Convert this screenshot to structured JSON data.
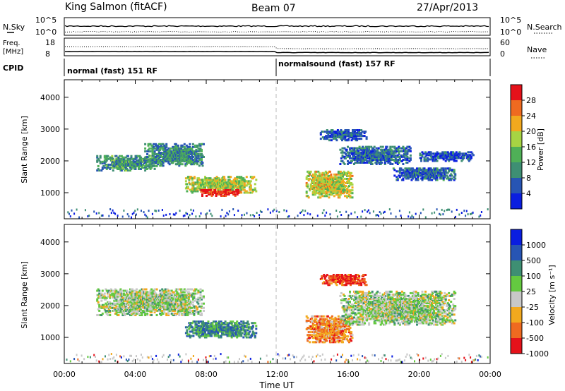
{
  "header": {
    "station": "King Salmon (fitACF)",
    "beam": "Beam 07",
    "date": "27/Apr/2013"
  },
  "strips": {
    "nsky_label": "N.Sky",
    "nsky_ticks": [
      "10^5",
      "10^0"
    ],
    "nsearch_label": "N.Search",
    "nsearch_ticks": [
      "10^5",
      "10^0"
    ],
    "freq_label": "Freq.",
    "freq_unit": "[MHz]",
    "freq_ticks": [
      "18",
      "8"
    ],
    "nave_label": "Nave",
    "nave_ticks": [
      "60",
      "0"
    ],
    "cpid_label": "CPID",
    "cpid_modes": [
      {
        "label": "normal (fast) 151 RF",
        "start_h": 0
      },
      {
        "label": "normalsound (fast) 157 RF",
        "start_h": 12
      }
    ]
  },
  "chart_data": [
    {
      "type": "heatmap",
      "title": "Power",
      "xlabel": "Time UT",
      "ylabel": "Slant Range [km]",
      "xlim": [
        0,
        24
      ],
      "ylim": [
        180,
        4550
      ],
      "xticks": [
        "00:00",
        "04:00",
        "08:00",
        "12:00",
        "16:00",
        "20:00",
        "00:00"
      ],
      "yticks": [
        1000,
        2000,
        3000,
        4000
      ],
      "colorbar": {
        "label": "Power [dB]",
        "ticks": [
          "4",
          "8",
          "12",
          "16",
          "20",
          "24",
          "28"
        ],
        "colors": [
          "#0a1ee0",
          "#2755b4",
          "#3e8f73",
          "#4fb057",
          "#a7d443",
          "#f2a91e",
          "#ef6a20",
          "#e5121a"
        ]
      },
      "regions": [
        {
          "t": [
            1.8,
            5.2
          ],
          "r": [
            1700,
            2150
          ],
          "level": 0.35
        },
        {
          "t": [
            4.5,
            7.8
          ],
          "r": [
            1850,
            2550
          ],
          "level": 0.32
        },
        {
          "t": [
            6.8,
            10.8
          ],
          "r": [
            1000,
            1500
          ],
          "level": 0.55
        },
        {
          "t": [
            7.6,
            10.0
          ],
          "r": [
            900,
            1100
          ],
          "level": 0.95
        },
        {
          "t": [
            13.6,
            16.2
          ],
          "r": [
            850,
            1700
          ],
          "level": 0.6
        },
        {
          "t": [
            14.4,
            17.0
          ],
          "r": [
            2650,
            3000
          ],
          "level": 0.2
        },
        {
          "t": [
            15.5,
            19.5
          ],
          "r": [
            1900,
            2450
          ],
          "level": 0.22
        },
        {
          "t": [
            18.5,
            22.0
          ],
          "r": [
            1400,
            1800
          ],
          "level": 0.22
        },
        {
          "t": [
            20.0,
            23.0
          ],
          "r": [
            2000,
            2300
          ],
          "level": 0.15
        }
      ]
    },
    {
      "type": "heatmap",
      "title": "Velocity",
      "xlabel": "Time UT",
      "ylabel": "Slant Range [km]",
      "xlim": [
        0,
        24
      ],
      "ylim": [
        180,
        4550
      ],
      "xticks": [
        "00:00",
        "04:00",
        "08:00",
        "12:00",
        "16:00",
        "20:00",
        "00:00"
      ],
      "yticks": [
        1000,
        2000,
        3000,
        4000
      ],
      "colorbar": {
        "label": "Velocity [m s⁻¹]",
        "ticks": [
          "1000",
          "500",
          "100",
          "25",
          "-25",
          "-100",
          "-500",
          "-1000"
        ],
        "colors": [
          "#0a1ee0",
          "#2755b4",
          "#3e8f73",
          "#64c940",
          "#c8c8c8",
          "#f2a91e",
          "#ef6a20",
          "#e5121a"
        ]
      },
      "regions": [
        {
          "t": [
            1.8,
            7.8
          ],
          "r": [
            1700,
            2550
          ],
          "level": 0.5
        },
        {
          "t": [
            6.8,
            10.8
          ],
          "r": [
            1000,
            1500
          ],
          "level": 0.7
        },
        {
          "t": [
            13.6,
            16.2
          ],
          "r": [
            850,
            1700
          ],
          "level": 0.25
        },
        {
          "t": [
            14.4,
            17.0
          ],
          "r": [
            2650,
            3000
          ],
          "level": 0.1
        },
        {
          "t": [
            15.5,
            22.0
          ],
          "r": [
            1400,
            2450
          ],
          "level": 0.5
        }
      ]
    }
  ]
}
